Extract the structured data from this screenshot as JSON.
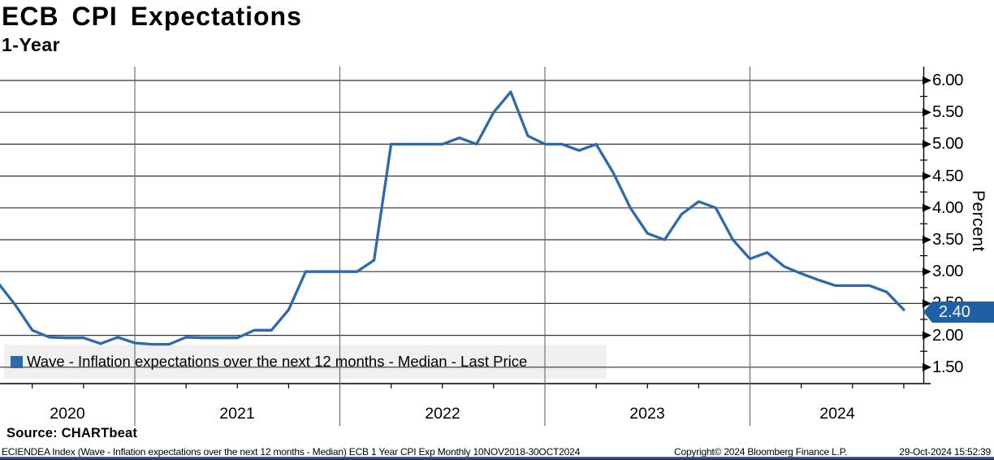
{
  "header": {
    "title": "ECB CPI Expectations",
    "subtitle": "1-Year"
  },
  "legend": {
    "label": "Wave - Inflation expectations over the next 12 months - Median - Last Price"
  },
  "badge": {
    "value": "2.40"
  },
  "axis": {
    "percent_label": "Percent",
    "y_ticks": [
      "6.00",
      "5.50",
      "5.00",
      "4.50",
      "4.00",
      "3.50",
      "3.00",
      "2.50",
      "2.00",
      "1.50"
    ],
    "x_labels": [
      "2020",
      "2021",
      "2022",
      "2023",
      "2024"
    ]
  },
  "footer": {
    "source": "Source: CHARTbeat",
    "description": "ECIENDEA Index (Wave - Inflation expectations over the next 12 months - Median) ECB 1 Year CPI Exp  Monthly 10NOV2018-30OCT2024",
    "copyright": "Copyright© 2024 Bloomberg Finance L.P.",
    "timestamp": "29-Oct-2024 15:52:39"
  },
  "colors": {
    "line": "#2c6aac",
    "badge": "#1f5fa5",
    "legend_bg": "#f0f0f0",
    "gridline": "#333333",
    "year_divider": "#666666"
  },
  "chart_data": {
    "type": "line",
    "title": "ECB CPI Expectations",
    "subtitle": "1-Year",
    "series_name": "Wave - Inflation expectations over the next 12 months - Median",
    "ylabel": "Percent",
    "grid": true,
    "legend_position": "bottom-left",
    "y_axis": {
      "visible_tick_min": 1.5,
      "visible_tick_max": 6.0,
      "tick_step": 0.5,
      "minor_tick_step": 0.25
    },
    "x_year_labels": [
      "2020",
      "2021",
      "2022",
      "2023",
      "2024"
    ],
    "last_price": 2.4,
    "x": [
      "2020-05",
      "2020-06",
      "2020-07",
      "2020-08",
      "2020-09",
      "2020-10",
      "2020-11",
      "2020-12",
      "2021-01",
      "2021-02",
      "2021-03",
      "2021-04",
      "2021-05",
      "2021-06",
      "2021-07",
      "2021-08",
      "2021-09",
      "2021-10",
      "2021-11",
      "2021-12",
      "2022-01",
      "2022-02",
      "2022-03",
      "2022-04",
      "2022-05",
      "2022-06",
      "2022-07",
      "2022-08",
      "2022-09",
      "2022-10",
      "2022-11",
      "2022-12",
      "2023-01",
      "2023-02",
      "2023-03",
      "2023-04",
      "2023-05",
      "2023-06",
      "2023-07",
      "2023-08",
      "2023-09",
      "2023-10",
      "2023-11",
      "2023-12",
      "2024-01",
      "2024-02",
      "2024-03",
      "2024-04",
      "2024-05",
      "2024-06",
      "2024-07",
      "2024-08",
      "2024-09",
      "2024-10"
    ],
    "values": [
      2.82,
      2.48,
      2.08,
      1.97,
      1.96,
      1.96,
      1.87,
      1.97,
      1.88,
      1.86,
      1.86,
      1.97,
      1.96,
      1.96,
      1.96,
      2.08,
      2.08,
      2.4,
      3.0,
      3.0,
      3.0,
      3.0,
      3.18,
      5.0,
      5.0,
      5.0,
      5.0,
      5.1,
      5.0,
      5.5,
      5.82,
      5.13,
      5.0,
      5.0,
      4.9,
      5.0,
      4.55,
      4.0,
      3.6,
      3.5,
      3.9,
      4.1,
      4.0,
      3.5,
      3.2,
      3.3,
      3.08,
      2.97,
      2.87,
      2.78,
      2.78,
      2.78,
      2.68,
      2.4
    ]
  }
}
